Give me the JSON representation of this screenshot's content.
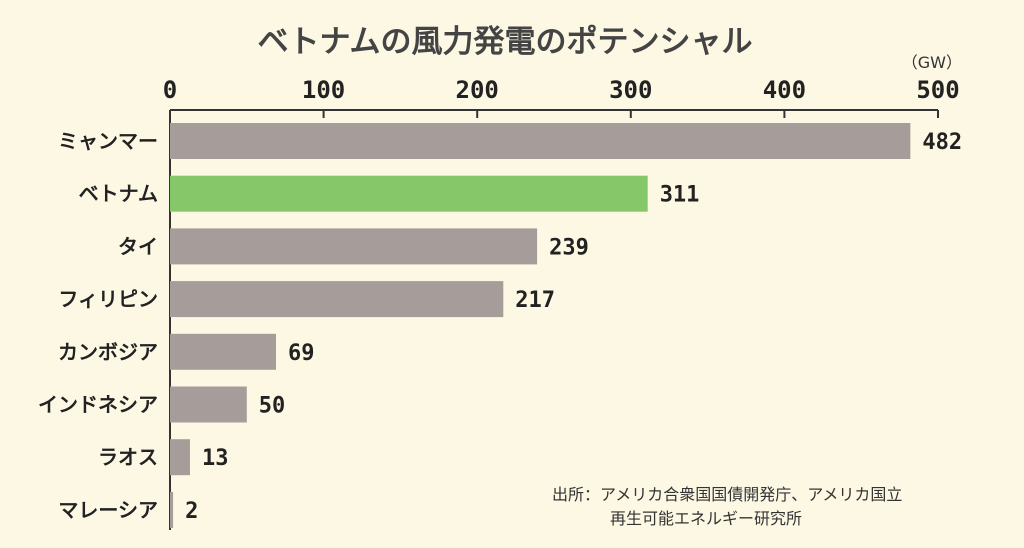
{
  "chart_data": {
    "type": "bar",
    "orientation": "horizontal",
    "title": "ベトナムの風力発電のポテンシャル",
    "unit": "（GW）",
    "categories": [
      "ミャンマー",
      "ベトナム",
      "タイ",
      "フィリピン",
      "カンボジア",
      "インドネシア",
      "ラオス",
      "マレーシア"
    ],
    "values": [
      482,
      311,
      239,
      217,
      69,
      50,
      13,
      2
    ],
    "value_labels": [
      "482",
      "311",
      "239",
      "217",
      "69",
      "50",
      "13",
      "2"
    ],
    "highlight": "ベトナム",
    "xlim": [
      0,
      500
    ],
    "xticks": [
      "0",
      "100",
      "200",
      "300",
      "400",
      "500"
    ],
    "grid": false,
    "legend": "none",
    "source_lines": [
      "出所：アメリカ合衆国国債開発庁、アメリカ国立",
      "再生可能エネルギー研究所"
    ]
  },
  "colors": {
    "bar": "#a69d9b",
    "highlight": "#86c76a",
    "axis": "#333333",
    "background": "#fdf8e4"
  }
}
